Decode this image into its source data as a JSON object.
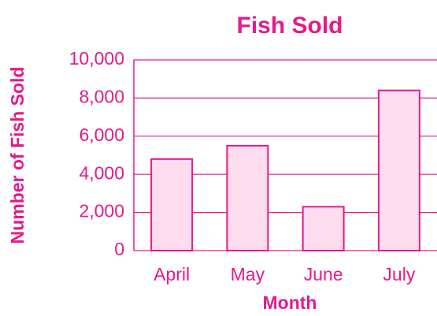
{
  "chart_data": {
    "type": "bar",
    "title": "Fish Sold",
    "x_label": "Month",
    "y_label": "Number of Fish Sold",
    "categories": [
      "April",
      "May",
      "June",
      "July"
    ],
    "values": [
      4800,
      5500,
      2300,
      8400
    ],
    "color": "#fddcee",
    "edge_color": "#e6198a",
    "ylim": [
      0,
      10000
    ],
    "yticks": [
      0,
      {
        "value": 2000,
        "label": "2,000"
      },
      {
        "value": 4000,
        "label": "4,000"
      },
      {
        "value": 6000,
        "label": "6,000"
      },
      {
        "value": 8000,
        "label": "8,000"
      },
      {
        "value": 10000,
        "label": "10,000"
      }
    ],
    "grid": true
  }
}
